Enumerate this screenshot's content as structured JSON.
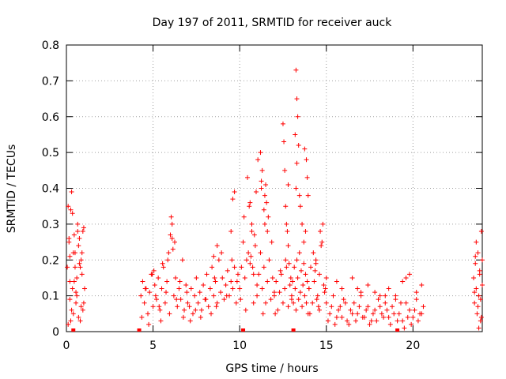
{
  "chart_data": {
    "type": "scatter",
    "title": "Day 197 of 2011, SRMTID for receiver auck",
    "xlabel": "GPS time / hours",
    "ylabel": "SRMTID / TECUs",
    "xlim": [
      0,
      24
    ],
    "ylim": [
      0,
      0.8
    ],
    "xticks": [
      0,
      5,
      10,
      15,
      20
    ],
    "yticks": [
      0,
      0.1,
      0.2,
      0.3,
      0.4,
      0.5,
      0.6,
      0.7,
      0.8
    ],
    "xtick_labels": [
      "0",
      "5",
      "10",
      "15",
      "20"
    ],
    "ytick_labels": [
      "0",
      "0.1",
      "0.2",
      "0.3",
      "0.4",
      "0.5",
      "0.6",
      "0.7",
      "0.8"
    ],
    "grid": true,
    "marker": "+",
    "color": "#ff0000",
    "baseline_markers_x": [
      0.4,
      4.2,
      10.2,
      13.1,
      19.1
    ],
    "series": [
      {
        "name": "SRMTID",
        "x": [
          0.05,
          0.1,
          0.15,
          0.2,
          0.25,
          0.3,
          0.35,
          0.4,
          0.45,
          0.5,
          0.55,
          0.6,
          0.65,
          0.7,
          0.75,
          0.8,
          0.85,
          0.9,
          0.95,
          1.0,
          1.05,
          0.1,
          0.2,
          0.3,
          0.4,
          0.5,
          0.6,
          0.7,
          0.8,
          0.9,
          1.0,
          0.15,
          0.35,
          0.55,
          0.75,
          0.95,
          0.2,
          0.45,
          0.65,
          0.85,
          0.25,
          4.3,
          4.4,
          4.5,
          4.6,
          4.7,
          4.8,
          4.9,
          5.0,
          5.1,
          5.2,
          5.3,
          5.4,
          5.5,
          5.6,
          5.7,
          5.8,
          5.9,
          6.0,
          6.1,
          6.2,
          6.3,
          6.4,
          6.5,
          6.6,
          6.7,
          6.8,
          6.9,
          7.0,
          4.35,
          4.55,
          4.75,
          4.95,
          5.15,
          5.35,
          5.55,
          5.75,
          5.95,
          6.15,
          6.35,
          6.55,
          6.75,
          6.95,
          5.05,
          5.45,
          5.85,
          6.25,
          6.05,
          6.1,
          7.1,
          7.2,
          7.3,
          7.4,
          7.5,
          7.6,
          7.7,
          7.8,
          7.9,
          8.0,
          8.1,
          8.2,
          8.3,
          8.4,
          8.5,
          8.6,
          8.7,
          8.8,
          8.9,
          9.0,
          9.1,
          9.2,
          9.3,
          9.4,
          9.5,
          9.6,
          9.7,
          9.8,
          9.9,
          7.15,
          7.45,
          7.75,
          8.05,
          8.35,
          8.65,
          8.95,
          9.25,
          9.55,
          9.85,
          8.5,
          8.7,
          9.5,
          9.6,
          9.7,
          8.55,
          10.0,
          10.1,
          10.2,
          10.3,
          10.4,
          10.5,
          10.6,
          10.7,
          10.8,
          10.9,
          11.0,
          10.05,
          10.25,
          10.45,
          10.65,
          10.85,
          10.35,
          10.55,
          10.75,
          10.95,
          10.6,
          10.7,
          10.8,
          11.0,
          11.1,
          11.2,
          11.3,
          11.4,
          11.5,
          11.6,
          11.7,
          11.8,
          11.9,
          12.0,
          11.05,
          11.25,
          11.45,
          11.65,
          11.85,
          11.2,
          11.3,
          11.4,
          11.5,
          11.35,
          11.45,
          11.55,
          11.6,
          11.25,
          12.0,
          12.1,
          12.2,
          12.3,
          12.4,
          12.5,
          12.6,
          12.7,
          12.8,
          12.9,
          13.0,
          12.05,
          12.35,
          12.65,
          12.95,
          12.5,
          12.55,
          12.6,
          12.65,
          12.7,
          12.75,
          12.8,
          12.8,
          12.85,
          13.0,
          13.05,
          13.1,
          13.15,
          13.2,
          13.25,
          13.3,
          13.35,
          13.4,
          13.45,
          13.5,
          13.55,
          13.6,
          13.65,
          13.7,
          13.75,
          13.8,
          13.85,
          13.9,
          13.95,
          14.0,
          13.2,
          13.25,
          13.3,
          13.35,
          13.3,
          13.4,
          13.25,
          13.45,
          13.5,
          13.6,
          13.7,
          13.8,
          13.75,
          13.85,
          13.9,
          13.95,
          14.0,
          14.1,
          14.2,
          14.3,
          14.4,
          14.5,
          14.6,
          14.7,
          14.8,
          14.9,
          15.0,
          14.05,
          14.25,
          14.45,
          14.65,
          14.85,
          14.35,
          14.55,
          14.75,
          14.95,
          14.4,
          14.6,
          15.0,
          15.2,
          15.4,
          15.6,
          15.8,
          16.0,
          16.2,
          16.4,
          16.6,
          16.8,
          17.0,
          17.2,
          17.4,
          17.6,
          17.8,
          18.0,
          18.2,
          18.4,
          18.6,
          18.8,
          19.0,
          19.2,
          19.4,
          19.6,
          19.8,
          20.0,
          20.2,
          20.4,
          20.6,
          15.1,
          15.3,
          15.5,
          15.7,
          15.9,
          16.1,
          16.3,
          16.5,
          16.7,
          16.9,
          17.1,
          17.3,
          17.5,
          17.7,
          17.9,
          18.1,
          18.3,
          18.5,
          18.7,
          18.9,
          19.1,
          19.3,
          19.5,
          19.7,
          19.9,
          20.1,
          20.3,
          20.5,
          15.9,
          16.5,
          17.0,
          17.4,
          18.1,
          18.6,
          19.4,
          19.8,
          20.2,
          20.5,
          19.0,
          19.6,
          16.8,
          17.8,
          18.4,
          15.6,
          23.5,
          23.55,
          23.6,
          23.65,
          23.7,
          23.75,
          23.8,
          23.85,
          23.9,
          23.95,
          24.0,
          23.55,
          23.65,
          23.75,
          23.85,
          23.95,
          23.9,
          24.0,
          23.6,
          23.8
        ],
        "y": [
          0.18,
          0.35,
          0.25,
          0.09,
          0.34,
          0.39,
          0.12,
          0.05,
          0.27,
          0.22,
          0.08,
          0.15,
          0.3,
          0.04,
          0.26,
          0.18,
          0.07,
          0.22,
          0.28,
          0.29,
          0.12,
          0.02,
          0.14,
          0.06,
          0.22,
          0.18,
          0.1,
          0.24,
          0.03,
          0.16,
          0.08,
          0.26,
          0.33,
          0.11,
          0.19,
          0.06,
          0.21,
          0.14,
          0.28,
          0.2,
          0.03,
          0.1,
          0.14,
          0.08,
          0.12,
          0.05,
          0.11,
          0.16,
          0.07,
          0.13,
          0.09,
          0.15,
          0.06,
          0.12,
          0.18,
          0.08,
          0.14,
          0.22,
          0.27,
          0.3,
          0.1,
          0.15,
          0.07,
          0.12,
          0.09,
          0.2,
          0.06,
          0.13,
          0.08,
          0.04,
          0.12,
          0.02,
          0.16,
          0.1,
          0.07,
          0.19,
          0.11,
          0.05,
          0.23,
          0.09,
          0.14,
          0.04,
          0.11,
          0.17,
          0.03,
          0.2,
          0.25,
          0.32,
          0.26,
          0.07,
          0.12,
          0.05,
          0.1,
          0.15,
          0.08,
          0.11,
          0.06,
          0.13,
          0.09,
          0.16,
          0.07,
          0.12,
          0.18,
          0.1,
          0.14,
          0.08,
          0.2,
          0.11,
          0.15,
          0.09,
          0.13,
          0.17,
          0.1,
          0.14,
          0.12,
          0.18,
          0.08,
          0.16,
          0.03,
          0.06,
          0.04,
          0.09,
          0.05,
          0.07,
          0.22,
          0.1,
          0.2,
          0.14,
          0.21,
          0.24,
          0.28,
          0.37,
          0.39,
          0.15,
          0.12,
          0.18,
          0.25,
          0.15,
          0.2,
          0.22,
          0.19,
          0.28,
          0.16,
          0.24,
          0.13,
          0.09,
          0.32,
          0.43,
          0.21,
          0.27,
          0.06,
          0.35,
          0.18,
          0.39,
          0.36,
          0.3,
          0.08,
          0.1,
          0.16,
          0.22,
          0.12,
          0.18,
          0.08,
          0.14,
          0.2,
          0.09,
          0.15,
          0.11,
          0.48,
          0.42,
          0.38,
          0.32,
          0.25,
          0.5,
          0.45,
          0.34,
          0.41,
          0.05,
          0.3,
          0.36,
          0.28,
          0.4,
          0.1,
          0.14,
          0.06,
          0.11,
          0.16,
          0.08,
          0.12,
          0.18,
          0.07,
          0.13,
          0.09,
          0.05,
          0.17,
          0.2,
          0.15,
          0.58,
          0.53,
          0.45,
          0.35,
          0.3,
          0.28,
          0.24,
          0.41,
          0.19,
          0.1,
          0.14,
          0.08,
          0.18,
          0.12,
          0.06,
          0.2,
          0.15,
          0.09,
          0.22,
          0.11,
          0.17,
          0.07,
          0.13,
          0.19,
          0.1,
          0.16,
          0.08,
          0.14,
          0.05,
          0.12,
          0.55,
          0.73,
          0.65,
          0.6,
          0.47,
          0.52,
          0.4,
          0.38,
          0.35,
          0.3,
          0.25,
          0.28,
          0.51,
          0.48,
          0.43,
          0.38,
          0.12,
          0.18,
          0.08,
          0.14,
          0.2,
          0.1,
          0.16,
          0.24,
          0.3,
          0.11,
          0.15,
          0.05,
          0.22,
          0.09,
          0.28,
          0.13,
          0.17,
          0.07,
          0.25,
          0.12,
          0.19,
          0.06,
          0.08,
          0.05,
          0.1,
          0.04,
          0.07,
          0.09,
          0.03,
          0.06,
          0.08,
          0.05,
          0.1,
          0.04,
          0.07,
          0.03,
          0.06,
          0.09,
          0.05,
          0.08,
          0.04,
          0.07,
          0.1,
          0.05,
          0.03,
          0.08,
          0.06,
          0.04,
          0.09,
          0.05,
          0.07,
          0.03,
          0.07,
          0.02,
          0.06,
          0.04,
          0.08,
          0.02,
          0.05,
          0.03,
          0.07,
          0.04,
          0.06,
          0.02,
          0.05,
          0.03,
          0.07,
          0.04,
          0.06,
          0.02,
          0.05,
          0.03,
          0.08,
          0.01,
          0.04,
          0.02,
          0.06,
          0.03,
          0.05,
          0.12,
          0.15,
          0.11,
          0.13,
          0.1,
          0.12,
          0.14,
          0.16,
          0.11,
          0.13,
          0.09,
          0.15,
          0.12,
          0.11,
          0.1,
          0.14,
          0.15,
          0.08,
          0.19,
          0.12,
          0.05,
          0.22,
          0.1,
          0.16,
          0.03,
          0.28,
          0.2,
          0.11,
          0.25,
          0.07,
          0.17,
          0.04,
          0.09,
          0.13,
          0.21,
          0.01
        ]
      }
    ]
  }
}
